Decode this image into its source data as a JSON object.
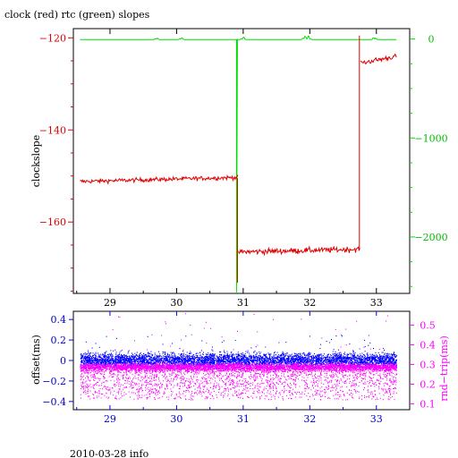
{
  "title": "clock (red) rtc (green) slopes",
  "footer": "2010-03-28 info",
  "colors": {
    "clock": "#e00000",
    "rtc": "#00dd00",
    "offset": "#0000ff",
    "rndtrip": "#ff00ff",
    "frame": "#000000"
  },
  "chart_data": [
    {
      "type": "line",
      "title": "clock (red) rtc (green) slopes",
      "ylabel": "clockslope",
      "x_ticks": [
        "29",
        "30",
        "31",
        "32",
        "33"
      ],
      "x_tick_values": [
        29,
        30,
        31,
        32,
        33
      ],
      "xlim": [
        28.45,
        33.5
      ],
      "ylim_left": [
        -175.5,
        -118
      ],
      "ylim_right": [
        -2570,
        105
      ],
      "y_ticks_left": [
        "−120",
        "−140",
        "−160"
      ],
      "y_tick_values_left": [
        -120,
        -140,
        -160
      ],
      "y_ticks_right": [
        "0",
        "−1000",
        "−2000"
      ],
      "y_tick_values_right": [
        0,
        -1000,
        -2000
      ],
      "series": [
        {
          "name": "clock",
          "axis": "left",
          "color": "#e00000",
          "segments": [
            {
              "x_start": 28.55,
              "x_end": 30.92,
              "base": -151.2,
              "noise": 0.45,
              "rise": 0.9
            },
            {
              "x_start": 30.93,
              "x_end": 32.75,
              "base": -166.5,
              "noise": 0.6,
              "rise": 0.6
            },
            {
              "x_start": 32.76,
              "x_end": 33.3,
              "base": -125.5,
              "noise": 0.55,
              "rise": 1.5
            }
          ],
          "spikes": [
            {
              "x": 30.915,
              "from": -150.5,
              "to": -173.2
            },
            {
              "x": 32.745,
              "from": -166.0,
              "to": -119.5
            }
          ]
        },
        {
          "name": "rtc",
          "axis": "right",
          "color": "#00dd00",
          "x_range": [
            28.55,
            33.3
          ],
          "base": -5,
          "spikes": [
            {
              "x": 30.9,
              "to": -2560
            }
          ],
          "bumps": [
            {
              "x": 29.7,
              "h": 20
            },
            {
              "x": 30.07,
              "h": 25
            },
            {
              "x": 31.0,
              "h": 30
            },
            {
              "x": 31.92,
              "h": 45
            },
            {
              "x": 31.98,
              "h": 40
            },
            {
              "x": 32.97,
              "h": 30
            }
          ]
        }
      ]
    },
    {
      "type": "scatter",
      "ylabel_left": "offset(ms)",
      "ylabel_right": "rnd−trip(ms)",
      "x_ticks": [
        "29",
        "30",
        "31",
        "32",
        "33"
      ],
      "x_tick_values": [
        29,
        30,
        31,
        32,
        33
      ],
      "xlim": [
        28.45,
        33.5
      ],
      "ylim_left": [
        -0.48,
        0.48
      ],
      "ylim_right": [
        0.07,
        0.57
      ],
      "y_ticks_left": [
        "0.4",
        "0.2",
        "0",
        "−0.2",
        "−0.4"
      ],
      "y_tick_values_left": [
        0.4,
        0.2,
        0,
        -0.2,
        -0.4
      ],
      "y_ticks_right": [
        "0.5",
        "0.4",
        "0.3",
        "0.2",
        "0.1"
      ],
      "y_tick_values_right": [
        0.5,
        0.4,
        0.3,
        0.2,
        0.1
      ],
      "series": [
        {
          "name": "offset",
          "axis": "left",
          "color": "#0000ff",
          "x_range": [
            28.55,
            33.3
          ],
          "center": 0.0,
          "spread": 0.07,
          "outlier_range": [
            -0.1,
            0.25
          ]
        },
        {
          "name": "rnd-trip",
          "axis": "right",
          "color": "#ff00ff",
          "x_range": [
            28.55,
            33.3
          ],
          "center": 0.285,
          "spread": 0.02,
          "tail_range": [
            0.12,
            0.27
          ],
          "outlier_range": [
            0.36,
            0.56
          ]
        }
      ]
    }
  ]
}
